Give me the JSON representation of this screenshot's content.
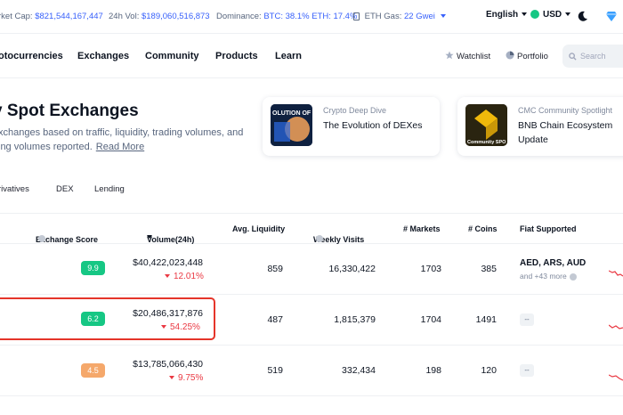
{
  "stats": {
    "market_cap_label": "rket Cap:",
    "market_cap_value": "$821,544,167,447",
    "vol_label": "24h Vol:",
    "vol_value": "$189,060,516,873",
    "dominance_label": "Dominance:",
    "dominance_value": "BTC: 38.1% ETH: 17.4%",
    "gas_label": "ETH Gas:",
    "gas_value": "22 Gwei",
    "language": "English",
    "currency": "USD"
  },
  "nav": {
    "links": [
      "otocurrencies",
      "Exchanges",
      "Community",
      "Products",
      "Learn"
    ],
    "watchlist": "Watchlist",
    "portfolio": "Portfolio",
    "search_placeholder": "Search"
  },
  "page": {
    "title": "Spot Exchanges",
    "description": "xchanges based on traffic, liquidity, trading volumes, and ing volumes reported.",
    "read_more": "Read More"
  },
  "cards": [
    {
      "kicker": "Crypto Deep Dive",
      "heading": "The Evolution of DEXes",
      "thumb_text": "OLUTION OF"
    },
    {
      "kicker": "CMC Community Spotlight",
      "heading": "BNB Chain Ecosystem Update",
      "thumb_text": "Community SPO"
    }
  ],
  "tabs": [
    "rivatives",
    "DEX",
    "Lending"
  ],
  "table": {
    "headers": {
      "score": "Exchange Score",
      "volume": "Volume(24h)",
      "liquidity": "Avg. Liquidity",
      "visits": "Weekly Visits",
      "markets": "# Markets",
      "coins": "# Coins",
      "fiat": "Fiat Supported"
    },
    "rows": [
      {
        "score": "9.9",
        "score_color": "#16c784",
        "volume": "$40,422,023,448",
        "change": "12.01%",
        "liquidity": "859",
        "visits": "16,330,422",
        "markets": "1703",
        "coins": "385",
        "fiat": "AED, ARS, AUD",
        "fiat_more": "and +43 more"
      },
      {
        "score": "6.2",
        "score_color": "#16c784",
        "volume": "$20,486,317,876",
        "change": "54.25%",
        "liquidity": "487",
        "visits": "1,815,379",
        "markets": "1704",
        "coins": "1491",
        "fiat": "--",
        "fiat_more": ""
      },
      {
        "score": "4.5",
        "score_color": "#f5a86b",
        "volume": "$13,785,066,430",
        "change": "9.75%",
        "liquidity": "519",
        "visits": "332,434",
        "markets": "198",
        "coins": "120",
        "fiat": "--",
        "fiat_more": ""
      }
    ]
  },
  "colors": {
    "accent": "#3861fb",
    "positive": "#16c784",
    "negative": "#ea3943",
    "highlight": "#e5352a"
  }
}
